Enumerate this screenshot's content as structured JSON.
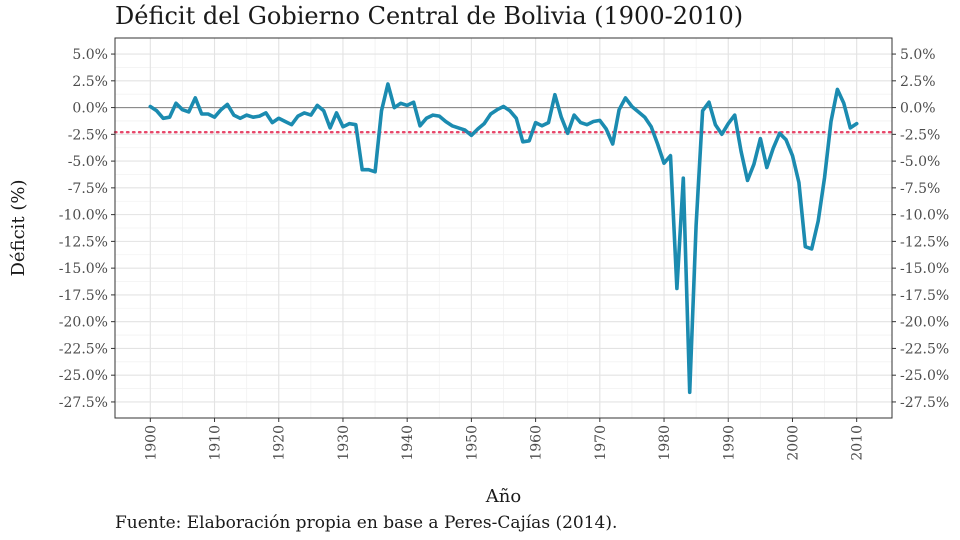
{
  "chart_data": {
    "type": "line",
    "title": "Déficit del Gobierno Central de Bolivia (1900-2010)",
    "xlabel": "Año",
    "ylabel": "Déficit (%)",
    "caption": "Fuente: Elaboración propia en base a Peres-Cajías (2014).",
    "xlim": [
      1894.5,
      2015.5
    ],
    "ylim": [
      -29.0,
      6.5
    ],
    "x_ticks": [
      1900,
      1910,
      1920,
      1930,
      1940,
      1950,
      1960,
      1970,
      1980,
      1990,
      2000,
      2010
    ],
    "y_ticks": [
      5,
      2.5,
      0,
      -2.5,
      -5,
      -7.5,
      -10,
      -12.5,
      -15,
      -17.5,
      -20,
      -22.5,
      -25,
      -27.5
    ],
    "y_tick_labels": [
      "5.0%",
      "2.5%",
      "0.0%",
      "-2.5%",
      "-5.0%",
      "-7.5%",
      "-10.0%",
      "-12.5%",
      "-15.0%",
      "-17.5%",
      "-20.0%",
      "-22.5%",
      "-25.0%",
      "-27.5%"
    ],
    "reference_lines": [
      {
        "y": 0,
        "color": "#7f7f7f",
        "style": "solid"
      },
      {
        "y": -2.3,
        "color": "#e8476a",
        "style": "dotted"
      }
    ],
    "series": [
      {
        "color": "#1b8bb0",
        "x": [
          1900,
          1901,
          1902,
          1903,
          1904,
          1905,
          1906,
          1907,
          1908,
          1909,
          1910,
          1911,
          1912,
          1913,
          1914,
          1915,
          1916,
          1917,
          1918,
          1919,
          1920,
          1921,
          1922,
          1923,
          1924,
          1925,
          1926,
          1927,
          1928,
          1929,
          1930,
          1931,
          1932,
          1933,
          1934,
          1935,
          1936,
          1937,
          1938,
          1939,
          1940,
          1941,
          1942,
          1943,
          1944,
          1945,
          1946,
          1947,
          1948,
          1949,
          1950,
          1951,
          1952,
          1953,
          1954,
          1955,
          1956,
          1957,
          1958,
          1959,
          1960,
          1961,
          1962,
          1963,
          1964,
          1965,
          1966,
          1967,
          1968,
          1969,
          1970,
          1971,
          1972,
          1973,
          1974,
          1975,
          1976,
          1977,
          1978,
          1979,
          1980,
          1981,
          1982,
          1983,
          1984,
          1985,
          1986,
          1987,
          1988,
          1989,
          1990,
          1991,
          1992,
          1993,
          1994,
          1995,
          1996,
          1997,
          1998,
          1999,
          2000,
          2001,
          2002,
          2003,
          2004,
          2005,
          2006,
          2007,
          2008,
          2009,
          2010
        ],
        "y": [
          0.1,
          -0.3,
          -1.0,
          -0.9,
          0.4,
          -0.2,
          -0.4,
          0.9,
          -0.6,
          -0.6,
          -0.9,
          -0.2,
          0.3,
          -0.7,
          -1.0,
          -0.7,
          -0.9,
          -0.8,
          -0.5,
          -1.4,
          -1.0,
          -1.3,
          -1.6,
          -0.8,
          -0.5,
          -0.7,
          0.2,
          -0.3,
          -1.9,
          -0.5,
          -1.8,
          -1.5,
          -1.6,
          -5.8,
          -5.8,
          -6.0,
          -0.3,
          2.2,
          0.0,
          0.4,
          0.2,
          0.5,
          -1.7,
          -1.0,
          -0.7,
          -0.8,
          -1.3,
          -1.7,
          -1.9,
          -2.1,
          -2.6,
          -2.0,
          -1.5,
          -0.6,
          -0.2,
          0.1,
          -0.3,
          -1.0,
          -3.2,
          -3.1,
          -1.4,
          -1.7,
          -1.4,
          1.2,
          -0.9,
          -2.4,
          -0.7,
          -1.4,
          -1.6,
          -1.3,
          -1.2,
          -2.0,
          -3.4,
          -0.2,
          0.9,
          0.1,
          -0.4,
          -0.9,
          -1.8,
          -3.4,
          -5.2,
          -4.5,
          -16.9,
          -6.6,
          -26.6,
          -11.0,
          -0.3,
          0.5,
          -1.6,
          -2.5,
          -1.5,
          -0.7,
          -4.1,
          -6.8,
          -5.3,
          -2.9,
          -5.6,
          -3.8,
          -2.4,
          -3.0,
          -4.5,
          -7.0,
          -13.0,
          -13.2,
          -10.6,
          -6.5,
          -1.3,
          1.7,
          0.4,
          -1.9,
          -1.5
        ]
      }
    ],
    "grid": true,
    "legend": "none"
  }
}
